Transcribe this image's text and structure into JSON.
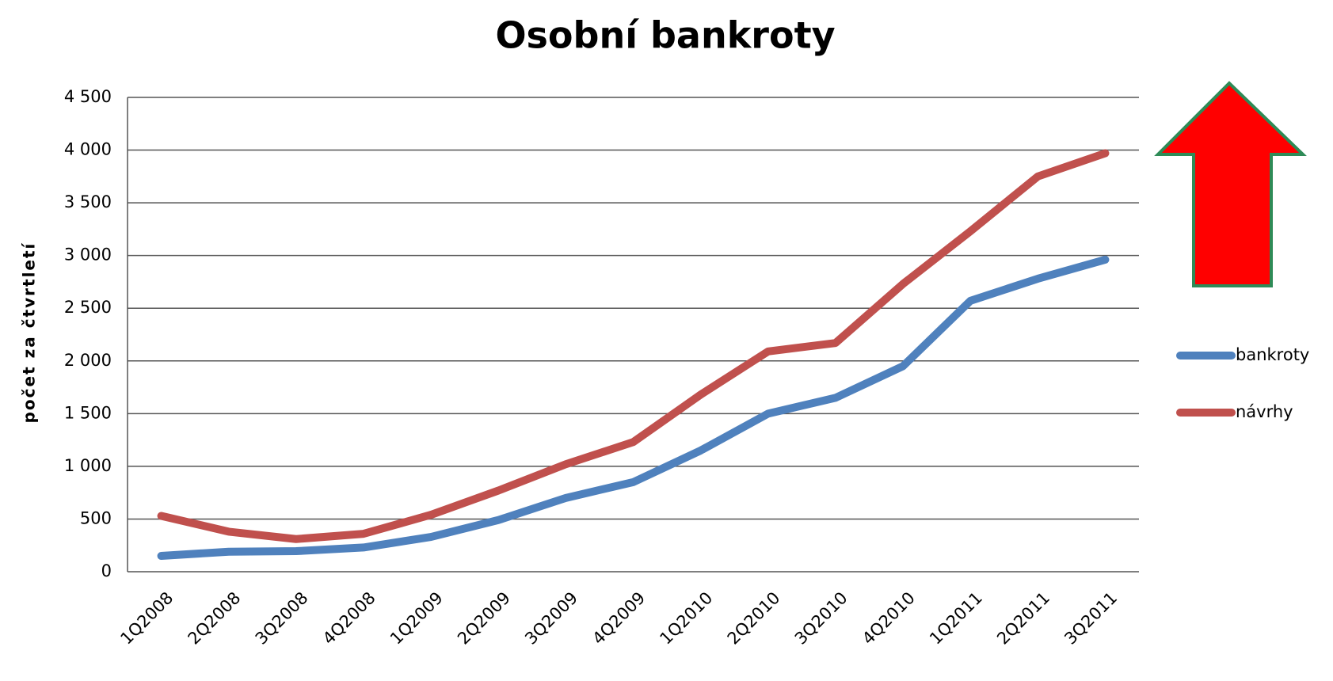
{
  "chart_data": {
    "type": "line",
    "title": "Osobní bankroty",
    "y_label": "počet za čtvrtletí",
    "categories": [
      "1Q2008",
      "2Q2008",
      "3Q2008",
      "4Q2008",
      "1Q2009",
      "2Q2009",
      "3Q2009",
      "4Q2009",
      "1Q2010",
      "2Q2010",
      "3Q2010",
      "4Q2010",
      "1Q2011",
      "2Q2011",
      "3Q2011"
    ],
    "series": [
      {
        "name": "bankroty",
        "color": "#4f81bd",
        "values": [
          150,
          190,
          195,
          230,
          330,
          490,
          700,
          850,
          1150,
          1500,
          1650,
          1950,
          2570,
          2780,
          2960
        ]
      },
      {
        "name": "návrhy",
        "color": "#c0504d",
        "values": [
          530,
          380,
          310,
          360,
          540,
          770,
          1020,
          1230,
          1680,
          2090,
          2170,
          2730,
          3230,
          3750,
          3970
        ]
      }
    ],
    "ylim": [
      0,
      4500
    ],
    "yticks": [
      0,
      500,
      {
        "value": 1000,
        "label": "1 000"
      },
      {
        "value": 1500,
        "label": "1 500"
      },
      {
        "value": 2000,
        "label": "2 000"
      },
      {
        "value": 2500,
        "label": "2 500"
      },
      {
        "value": 3000,
        "label": "3 000"
      },
      {
        "value": 3500,
        "label": "3 500"
      },
      {
        "value": 4000,
        "label": "4 000"
      },
      {
        "value": 4500,
        "label": "4 500"
      }
    ],
    "grid": true,
    "legend": "right"
  }
}
